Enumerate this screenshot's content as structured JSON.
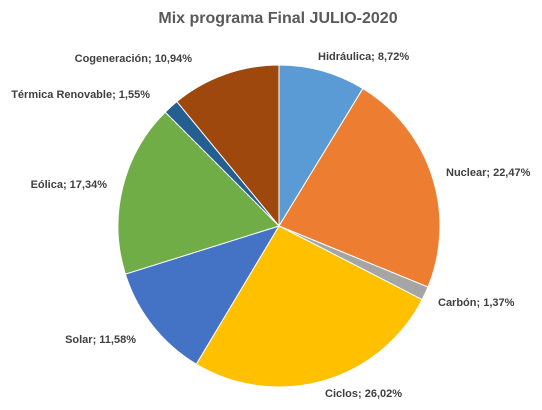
{
  "chart_data": {
    "type": "pie",
    "title": "Mix programa Final JULIO-2020",
    "slices": [
      {
        "label": "Hidráulica",
        "value": 8.72,
        "value_text": "8,72%",
        "color": "#5B9BD5"
      },
      {
        "label": "Nuclear",
        "value": 22.47,
        "value_text": "22,47%",
        "color": "#ED7D31"
      },
      {
        "label": "Carbón",
        "value": 1.37,
        "value_text": "1,37%",
        "color": "#A5A5A5"
      },
      {
        "label": "Ciclos",
        "value": 26.02,
        "value_text": "26,02%",
        "color": "#FFC000"
      },
      {
        "label": "Solar",
        "value": 11.58,
        "value_text": "11,58%",
        "color": "#4472C4"
      },
      {
        "label": "Eólica",
        "value": 17.34,
        "value_text": "17,34%",
        "color": "#70AD47"
      },
      {
        "label": "Térmica Renovable",
        "value": 1.55,
        "value_text": "1,55%",
        "color": "#255E91"
      },
      {
        "label": "Cogeneración",
        "value": 10.94,
        "value_text": "10,94%",
        "color": "#9E480E"
      }
    ],
    "start_angle": "12 o'clock",
    "direction": "clockwise",
    "legend": "none"
  }
}
